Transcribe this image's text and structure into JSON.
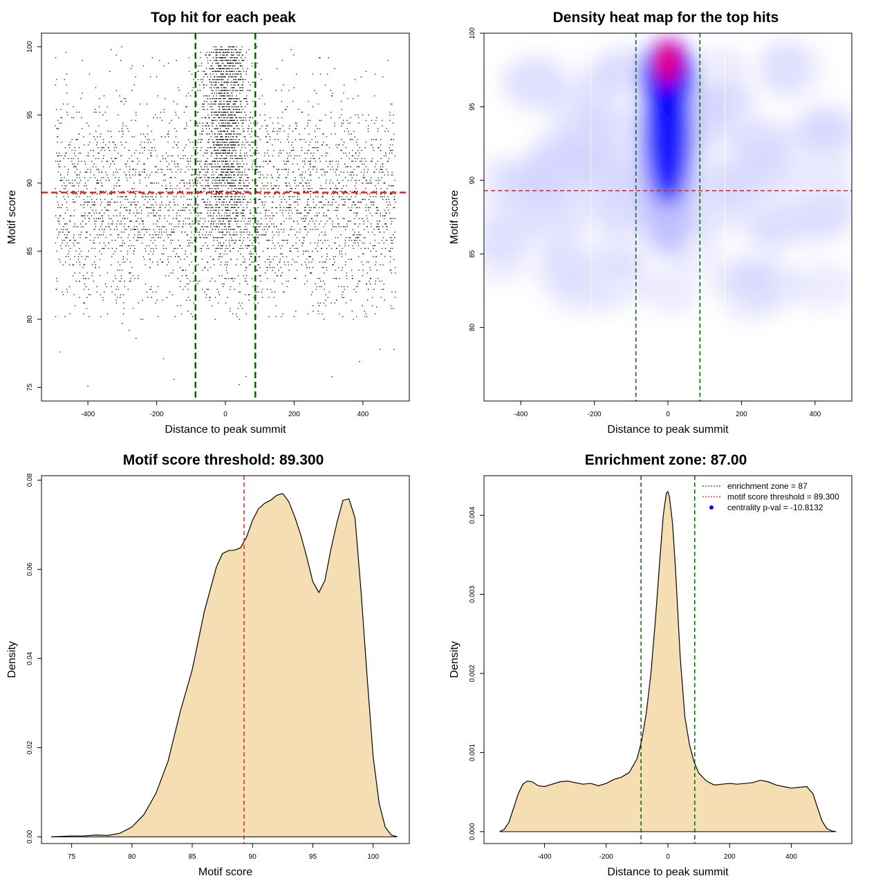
{
  "colors": {
    "threshold_line": "#dd2222",
    "zone_line": "#006400",
    "density_fill": "#f5deb3",
    "scatter_point": "#000000",
    "heat_low": "#ffffff",
    "heat_mid": "#0000ff",
    "heat_high": "#ff0000",
    "centrality_point": "#0000ff"
  },
  "chart_data": [
    {
      "id": "scatter",
      "type": "scatter",
      "title": "Top hit for each peak",
      "xlabel": "Distance to peak summit",
      "ylabel": "Motif score",
      "xlim": [
        -535,
        535
      ],
      "ylim": [
        74,
        101
      ],
      "xticks": [
        -400,
        -200,
        0,
        200,
        400
      ],
      "yticks": [
        75,
        80,
        85,
        90,
        95,
        100
      ],
      "xtick_labels": [
        "-400",
        "-200",
        "0",
        "200",
        "400"
      ],
      "ytick_labels": [
        "75",
        "80",
        "85",
        "90",
        "95",
        "100"
      ],
      "threshold_y": 89.3,
      "zone_x": [
        -87,
        87
      ],
      "background_points": {
        "n": 3800,
        "x_range": [
          -495,
          495
        ],
        "score_mode": 88.5
      },
      "central_points": {
        "n": 1700,
        "x_center": 0,
        "x_sd": 32,
        "score_range": [
          85,
          100
        ]
      },
      "outlier_points": [
        [
          -400,
          75.1
        ],
        [
          -260,
          78.6
        ],
        [
          -150,
          75.6
        ],
        [
          -280,
          79.2
        ],
        [
          -300,
          79.7
        ],
        [
          -480,
          77.6
        ],
        [
          -180,
          77.1
        ],
        [
          40,
          75.2
        ],
        [
          60,
          75.8
        ],
        [
          310,
          75.8
        ],
        [
          390,
          76.9
        ],
        [
          450,
          77.8
        ],
        [
          490,
          77.8
        ],
        [
          -100,
          80.4
        ],
        [
          200,
          80.2
        ],
        [
          440,
          80.9
        ]
      ]
    },
    {
      "id": "heatmap",
      "type": "heatmap",
      "title": "Density heat map for the top hits",
      "xlabel": "Distance to peak summit",
      "ylabel": "Motif score",
      "xlim": [
        -500,
        500
      ],
      "ylim": [
        75,
        100
      ],
      "xticks": [
        -400,
        -200,
        0,
        200,
        400
      ],
      "yticks": [
        80,
        85,
        90,
        95,
        100
      ],
      "xtick_labels": [
        "-400",
        "-200",
        "0",
        "200",
        "400"
      ],
      "ytick_labels": [
        "80",
        "85",
        "90",
        "95",
        "100"
      ],
      "threshold_y": 89.3,
      "zone_x": [
        -87,
        87
      ],
      "hotspot": {
        "x": 0,
        "score": 98,
        "peak_level": 1.0
      },
      "faint_grid_x": [
        -210,
        155
      ]
    },
    {
      "id": "score-density",
      "type": "area",
      "title": "Motif score threshold: 89.300",
      "xlabel": "Motif score",
      "ylabel": "Density",
      "xlim": [
        72.5,
        103
      ],
      "ylim": [
        -0.0015,
        0.081
      ],
      "xticks": [
        75,
        80,
        85,
        90,
        95,
        100
      ],
      "yticks": [
        0,
        0.02,
        0.04,
        0.06,
        0.08
      ],
      "xtick_labels": [
        "75",
        "80",
        "85",
        "90",
        "95",
        "100"
      ],
      "ytick_labels": [
        "0.00",
        "0.02",
        "0.04",
        "0.06",
        "0.08"
      ],
      "threshold_x": 89.3,
      "x": [
        73.3,
        75,
        76,
        77,
        78,
        79,
        80,
        81,
        82,
        83,
        84,
        85,
        86,
        87,
        87.5,
        88,
        88.5,
        89,
        89.5,
        90,
        90.5,
        91,
        91.5,
        92,
        92.5,
        93,
        93.5,
        94,
        94.5,
        95,
        95.5,
        96,
        96.5,
        97,
        97.5,
        98,
        98.5,
        99,
        99.5,
        100,
        100.5,
        101,
        101.5,
        102
      ],
      "y": [
        0,
        0.0002,
        0.0002,
        0.0004,
        0.0003,
        0.0008,
        0.0022,
        0.005,
        0.0098,
        0.017,
        0.028,
        0.0375,
        0.0505,
        0.0605,
        0.0635,
        0.0642,
        0.0643,
        0.0648,
        0.0672,
        0.071,
        0.0736,
        0.0748,
        0.0755,
        0.0766,
        0.077,
        0.0752,
        0.0718,
        0.0677,
        0.0627,
        0.0572,
        0.0548,
        0.0575,
        0.0645,
        0.0705,
        0.0755,
        0.0758,
        0.0715,
        0.055,
        0.036,
        0.018,
        0.0075,
        0.0022,
        0.0004,
        0
      ]
    },
    {
      "id": "distance-density",
      "type": "area",
      "title": "Enrichment zone: 87.00",
      "xlabel": "Distance to peak summit",
      "ylabel": "Density",
      "xlim": [
        -596,
        596
      ],
      "ylim": [
        -0.00015,
        0.0045
      ],
      "xticks": [
        -400,
        -200,
        0,
        200,
        400
      ],
      "yticks": [
        0,
        0.001,
        0.002,
        0.003,
        0.004
      ],
      "xtick_labels": [
        "-400",
        "-200",
        "0",
        "200",
        "400"
      ],
      "ytick_labels": [
        "0.000",
        "0.001",
        "0.002",
        "0.003",
        "0.004"
      ],
      "zone_x": [
        -87,
        87
      ],
      "x": [
        -545,
        -530,
        -515,
        -500,
        -485,
        -470,
        -455,
        -440,
        -420,
        -400,
        -375,
        -350,
        -325,
        -300,
        -275,
        -250,
        -225,
        -200,
        -175,
        -150,
        -125,
        -100,
        -85,
        -70,
        -55,
        -40,
        -25,
        -15,
        -5,
        0,
        5,
        15,
        25,
        40,
        55,
        70,
        85,
        100,
        125,
        150,
        175,
        200,
        225,
        250,
        275,
        300,
        325,
        350,
        375,
        400,
        425,
        450,
        470,
        485,
        500,
        515,
        530,
        545
      ],
      "y": [
        0,
        3e-05,
        0.00012,
        0.0003,
        0.00048,
        0.0006,
        0.00064,
        0.00063,
        0.00058,
        0.00057,
        0.0006,
        0.00063,
        0.00064,
        0.00062,
        0.0006,
        0.00061,
        0.00058,
        0.00061,
        0.00066,
        0.00069,
        0.00075,
        0.00092,
        0.00115,
        0.0015,
        0.002,
        0.0027,
        0.0035,
        0.004,
        0.00428,
        0.0043,
        0.00423,
        0.0039,
        0.0033,
        0.0022,
        0.00145,
        0.0011,
        0.00088,
        0.00074,
        0.00064,
        0.00059,
        0.0006,
        0.00061,
        0.0006,
        0.00061,
        0.00062,
        0.00065,
        0.00063,
        0.00059,
        0.00057,
        0.00055,
        0.00056,
        0.00057,
        0.00048,
        0.0003,
        0.00013,
        4e-05,
        1e-05,
        0
      ]
    }
  ],
  "legend": {
    "items": [
      {
        "label": "enrichment zone = 87",
        "kind": "dotted-line",
        "color": "#006400"
      },
      {
        "label": "motif score threshold = 89.300",
        "kind": "dotted-line",
        "color": "#dd2222"
      },
      {
        "label": "centrality p-val = -10.8132",
        "kind": "point",
        "color": "#0000ff"
      }
    ]
  }
}
